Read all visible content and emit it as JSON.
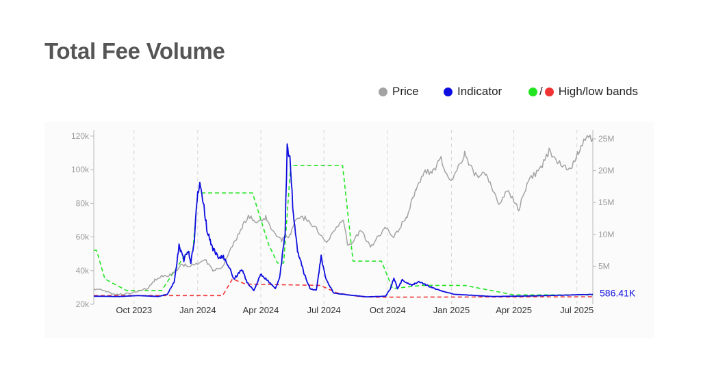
{
  "page": {
    "title": "Total Fee Volume"
  },
  "legend": {
    "price": {
      "label": "Price",
      "color": "#a3a3a3"
    },
    "indicator": {
      "label": "Indicator",
      "color": "#0d0ddf"
    },
    "bands": {
      "label": "High/low bands",
      "high_color": "#22e522",
      "low_color": "#f03333",
      "separator": "/"
    }
  },
  "chart_data": {
    "type": "line",
    "title": "Total Fee Volume",
    "x_ticks": [
      "Oct 2023",
      "Jan 2024",
      "Apr 2024",
      "Jul 2024",
      "Oct 2024",
      "Jan 2025",
      "Apr 2025",
      "Jul 2025"
    ],
    "x_range": [
      "2023-08-04",
      "2025-07-24"
    ],
    "y_left": {
      "label": "",
      "ticks": [
        "20k",
        "40k",
        "60k",
        "80k",
        "100k",
        "120k"
      ],
      "range": [
        20000,
        120000
      ]
    },
    "y_right": {
      "label": "",
      "ticks": [
        "5M",
        "10M",
        "15M",
        "20M",
        "25M"
      ],
      "range": [
        0,
        25000000
      ]
    },
    "grid": {
      "vertical": "dashed",
      "horizontal": "none"
    },
    "legend_position": "top-right",
    "last_value_label": "586.41K",
    "series": [
      {
        "name": "Price",
        "axis": "left",
        "color": "#a3a3a3",
        "points": [
          [
            "2023-08-04",
            29000
          ],
          [
            "2023-08-16",
            28700
          ],
          [
            "2023-08-28",
            26500
          ],
          [
            "2023-09-10",
            25900
          ],
          [
            "2023-09-24",
            26500
          ],
          [
            "2023-10-08",
            27800
          ],
          [
            "2023-10-20",
            29500
          ],
          [
            "2023-10-31",
            34500
          ],
          [
            "2023-11-10",
            36800
          ],
          [
            "2023-11-24",
            37400
          ],
          [
            "2023-12-08",
            43500
          ],
          [
            "2023-12-20",
            42800
          ],
          [
            "2024-01-01",
            44000
          ],
          [
            "2024-01-11",
            46800
          ],
          [
            "2024-01-24",
            39900
          ],
          [
            "2024-02-06",
            42700
          ],
          [
            "2024-02-16",
            51800
          ],
          [
            "2024-02-28",
            61000
          ],
          [
            "2024-03-06",
            67000
          ],
          [
            "2024-03-14",
            72500
          ],
          [
            "2024-03-26",
            69500
          ],
          [
            "2024-04-08",
            71500
          ],
          [
            "2024-04-18",
            63500
          ],
          [
            "2024-05-01",
            58300
          ],
          [
            "2024-05-14",
            61500
          ],
          [
            "2024-05-21",
            71000
          ],
          [
            "2024-06-05",
            71200
          ],
          [
            "2024-06-20",
            64800
          ],
          [
            "2024-07-05",
            56500
          ],
          [
            "2024-07-20",
            66500
          ],
          [
            "2024-07-29",
            69500
          ],
          [
            "2024-08-05",
            54000
          ],
          [
            "2024-08-24",
            64000
          ],
          [
            "2024-09-06",
            53800
          ],
          [
            "2024-09-27",
            65800
          ],
          [
            "2024-10-10",
            60300
          ],
          [
            "2024-10-29",
            72500
          ],
          [
            "2024-11-11",
            88700
          ],
          [
            "2024-11-22",
            98500
          ],
          [
            "2024-12-05",
            99500
          ],
          [
            "2024-12-17",
            106000
          ],
          [
            "2024-12-30",
            92500
          ],
          [
            "2025-01-20",
            109000
          ],
          [
            "2025-02-03",
            97500
          ],
          [
            "2025-02-20",
            96500
          ],
          [
            "2025-03-10",
            79500
          ],
          [
            "2025-03-24",
            87500
          ],
          [
            "2025-04-08",
            76500
          ],
          [
            "2025-04-22",
            93500
          ],
          [
            "2025-05-08",
            99500
          ],
          [
            "2025-05-22",
            111000
          ],
          [
            "2025-06-06",
            103500
          ],
          [
            "2025-06-22",
            101000
          ],
          [
            "2025-07-03",
            109500
          ],
          [
            "2025-07-14",
            120000
          ],
          [
            "2025-07-24",
            118500
          ]
        ]
      },
      {
        "name": "Indicator",
        "axis": "right",
        "color": "#0d0ddf",
        "points": [
          [
            "2023-08-04",
            300000
          ],
          [
            "2023-09-10",
            250000
          ],
          [
            "2023-10-08",
            400000
          ],
          [
            "2023-11-05",
            250000
          ],
          [
            "2023-11-18",
            600000
          ],
          [
            "2023-11-28",
            2500000
          ],
          [
            "2023-12-05",
            8300000
          ],
          [
            "2023-12-12",
            6000000
          ],
          [
            "2023-12-18",
            7500000
          ],
          [
            "2023-12-22",
            5500000
          ],
          [
            "2023-12-27",
            9000000
          ],
          [
            "2024-01-01",
            17000000
          ],
          [
            "2024-01-05",
            17500000
          ],
          [
            "2024-01-09",
            15000000
          ],
          [
            "2024-01-14",
            11000000
          ],
          [
            "2024-01-22",
            8000000
          ],
          [
            "2024-01-30",
            6500000
          ],
          [
            "2024-02-07",
            6500000
          ],
          [
            "2024-02-15",
            5000000
          ],
          [
            "2024-02-22",
            3000000
          ],
          [
            "2024-03-05",
            4500000
          ],
          [
            "2024-03-12",
            2500000
          ],
          [
            "2024-03-22",
            1200000
          ],
          [
            "2024-04-01",
            3800000
          ],
          [
            "2024-04-10",
            2800000
          ],
          [
            "2024-04-22",
            1500000
          ],
          [
            "2024-04-28",
            3200000
          ],
          [
            "2024-05-06",
            10000000
          ],
          [
            "2024-05-09",
            24500000
          ],
          [
            "2024-05-13",
            22000000
          ],
          [
            "2024-05-17",
            14500000
          ],
          [
            "2024-05-24",
            7500000
          ],
          [
            "2024-06-02",
            4000000
          ],
          [
            "2024-06-11",
            1500000
          ],
          [
            "2024-06-20",
            1200000
          ],
          [
            "2024-06-27",
            6500000
          ],
          [
            "2024-07-04",
            3000000
          ],
          [
            "2024-07-15",
            800000
          ],
          [
            "2024-08-05",
            500000
          ],
          [
            "2024-09-01",
            200000
          ],
          [
            "2024-09-28",
            300000
          ],
          [
            "2024-10-05",
            1500000
          ],
          [
            "2024-10-10",
            3200000
          ],
          [
            "2024-10-15",
            1500000
          ],
          [
            "2024-10-22",
            2800000
          ],
          [
            "2024-11-05",
            2000000
          ],
          [
            "2024-11-15",
            2600000
          ],
          [
            "2024-12-01",
            1800000
          ],
          [
            "2024-12-15",
            1200000
          ],
          [
            "2025-01-05",
            600000
          ],
          [
            "2025-03-01",
            250000
          ],
          [
            "2025-05-01",
            350000
          ],
          [
            "2025-07-24",
            586410
          ]
        ]
      },
      {
        "name": "High band",
        "axis": "right",
        "color": "#22e522",
        "points": [
          [
            "2023-08-04",
            7500000
          ],
          [
            "2023-08-08",
            7500000
          ],
          [
            "2023-08-20",
            3000000
          ],
          [
            "2023-09-20",
            1200000
          ],
          [
            "2023-11-10",
            1200000
          ],
          [
            "2023-12-15",
            7000000
          ],
          [
            "2023-12-25",
            7500000
          ],
          [
            "2024-01-01",
            16500000
          ],
          [
            "2024-03-20",
            16500000
          ],
          [
            "2024-04-12",
            8500000
          ],
          [
            "2024-04-25",
            5500000
          ],
          [
            "2024-05-04",
            5500000
          ],
          [
            "2024-05-14",
            20800000
          ],
          [
            "2024-07-28",
            20800000
          ],
          [
            "2024-08-12",
            5800000
          ],
          [
            "2024-09-22",
            5800000
          ],
          [
            "2024-10-08",
            1500000
          ],
          [
            "2024-11-20",
            2000000
          ],
          [
            "2025-01-20",
            2000000
          ],
          [
            "2025-04-01",
            500000
          ],
          [
            "2025-07-24",
            500000
          ]
        ]
      },
      {
        "name": "Low band",
        "axis": "right",
        "color": "#f03333",
        "points": [
          [
            "2023-08-04",
            400000
          ],
          [
            "2024-02-06",
            400000
          ],
          [
            "2024-02-20",
            3000000
          ],
          [
            "2024-03-10",
            2200000
          ],
          [
            "2024-06-26",
            2000000
          ],
          [
            "2024-07-20",
            800000
          ],
          [
            "2024-08-24",
            200000
          ],
          [
            "2024-09-15",
            150000
          ],
          [
            "2025-07-24",
            200000
          ]
        ]
      }
    ]
  }
}
